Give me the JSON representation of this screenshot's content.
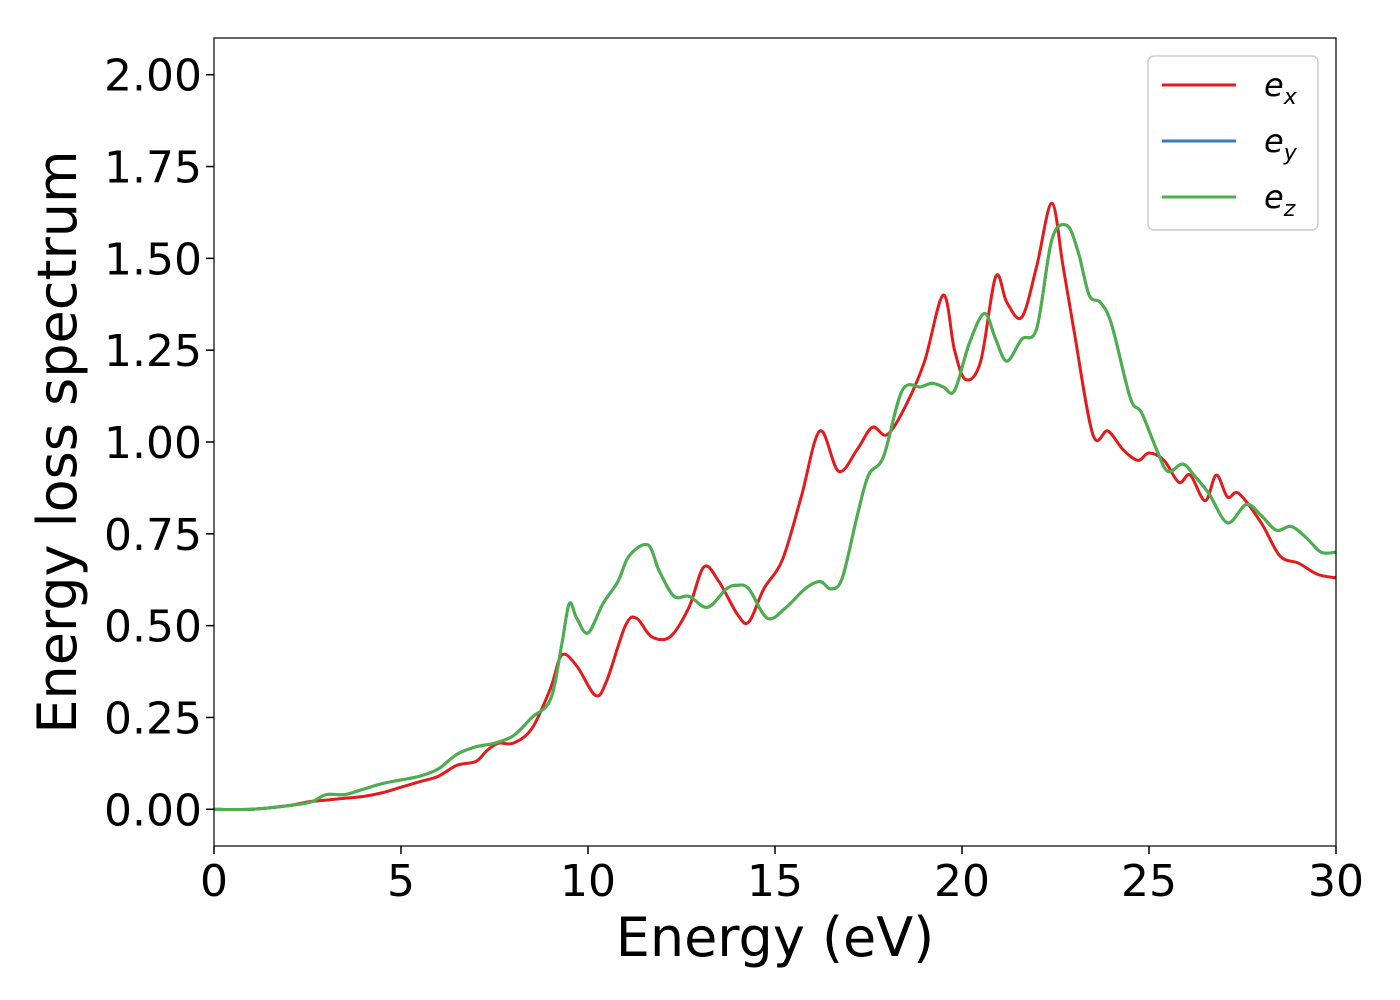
{
  "chart_data": {
    "type": "line",
    "title": "",
    "xlabel": "Energy (eV)",
    "ylabel": "Energy loss spectrum",
    "xlim": [
      0,
      30
    ],
    "ylim": [
      -0.1,
      2.1
    ],
    "xticks": [
      0,
      5,
      10,
      15,
      20,
      25,
      30
    ],
    "xtick_labels": [
      "0",
      "5",
      "10",
      "15",
      "20",
      "25",
      "30"
    ],
    "yticks": [
      0,
      0.25,
      0.5,
      0.75,
      1.0,
      1.25,
      1.5,
      1.75,
      2.0
    ],
    "ytick_labels": [
      "0.00",
      "0.25",
      "0.50",
      "0.75",
      "1.00",
      "1.25",
      "1.50",
      "1.75",
      "2.00"
    ],
    "grid": false,
    "legend_position": "top-right",
    "series": [
      {
        "name": "e",
        "subscript": "x",
        "color": "#e41a1c",
        "points": [
          [
            0,
            0
          ],
          [
            1,
            0
          ],
          [
            2,
            0.01
          ],
          [
            2.5,
            0.02
          ],
          [
            3,
            0.025
          ],
          [
            3.5,
            0.03
          ],
          [
            4,
            0.035
          ],
          [
            4.5,
            0.045
          ],
          [
            5,
            0.06
          ],
          [
            5.5,
            0.075
          ],
          [
            6,
            0.09
          ],
          [
            6.5,
            0.12
          ],
          [
            7,
            0.13
          ],
          [
            7.3,
            0.16
          ],
          [
            7.6,
            0.18
          ],
          [
            8,
            0.18
          ],
          [
            8.5,
            0.22
          ],
          [
            9,
            0.33
          ],
          [
            9.3,
            0.42
          ],
          [
            9.7,
            0.39
          ],
          [
            10.2,
            0.31
          ],
          [
            10.5,
            0.35
          ],
          [
            11,
            0.5
          ],
          [
            11.3,
            0.52
          ],
          [
            11.7,
            0.47
          ],
          [
            12.2,
            0.47
          ],
          [
            12.7,
            0.55
          ],
          [
            13.1,
            0.66
          ],
          [
            13.5,
            0.62
          ],
          [
            14,
            0.53
          ],
          [
            14.3,
            0.51
          ],
          [
            14.7,
            0.6
          ],
          [
            15.2,
            0.68
          ],
          [
            15.7,
            0.85
          ],
          [
            16.2,
            1.03
          ],
          [
            16.7,
            0.92
          ],
          [
            17.2,
            0.98
          ],
          [
            17.6,
            1.04
          ],
          [
            18,
            1.02
          ],
          [
            18.5,
            1.1
          ],
          [
            19,
            1.22
          ],
          [
            19.5,
            1.4
          ],
          [
            19.8,
            1.25
          ],
          [
            20.1,
            1.17
          ],
          [
            20.5,
            1.22
          ],
          [
            20.9,
            1.45
          ],
          [
            21.2,
            1.38
          ],
          [
            21.6,
            1.34
          ],
          [
            22,
            1.48
          ],
          [
            22.4,
            1.65
          ],
          [
            22.7,
            1.48
          ],
          [
            23,
            1.3
          ],
          [
            23.5,
            1.02
          ],
          [
            23.9,
            1.03
          ],
          [
            24.3,
            0.98
          ],
          [
            24.7,
            0.95
          ],
          [
            25,
            0.97
          ],
          [
            25.4,
            0.95
          ],
          [
            25.8,
            0.89
          ],
          [
            26.1,
            0.91
          ],
          [
            26.5,
            0.84
          ],
          [
            26.8,
            0.91
          ],
          [
            27.1,
            0.85
          ],
          [
            27.4,
            0.86
          ],
          [
            28,
            0.78
          ],
          [
            28.5,
            0.69
          ],
          [
            29,
            0.67
          ],
          [
            29.5,
            0.64
          ],
          [
            30,
            0.63
          ]
        ]
      },
      {
        "name": "e",
        "subscript": "y",
        "color": "#377eb8",
        "points": [
          [
            0,
            0
          ],
          [
            1,
            0
          ],
          [
            2,
            0.01
          ],
          [
            2.6,
            0.02
          ],
          [
            3,
            0.04
          ],
          [
            3.5,
            0.04
          ],
          [
            4,
            0.055
          ],
          [
            4.5,
            0.07
          ],
          [
            5,
            0.08
          ],
          [
            5.5,
            0.09
          ],
          [
            6,
            0.11
          ],
          [
            6.5,
            0.15
          ],
          [
            7,
            0.17
          ],
          [
            7.5,
            0.18
          ],
          [
            8,
            0.2
          ],
          [
            8.5,
            0.25
          ],
          [
            9,
            0.3
          ],
          [
            9.3,
            0.45
          ],
          [
            9.5,
            0.56
          ],
          [
            9.7,
            0.52
          ],
          [
            10,
            0.48
          ],
          [
            10.4,
            0.56
          ],
          [
            10.8,
            0.62
          ],
          [
            11.1,
            0.69
          ],
          [
            11.6,
            0.72
          ],
          [
            11.9,
            0.65
          ],
          [
            12.3,
            0.58
          ],
          [
            12.7,
            0.58
          ],
          [
            13.2,
            0.55
          ],
          [
            13.7,
            0.6
          ],
          [
            14,
            0.61
          ],
          [
            14.3,
            0.6
          ],
          [
            14.8,
            0.52
          ],
          [
            15.3,
            0.55
          ],
          [
            15.8,
            0.6
          ],
          [
            16.2,
            0.62
          ],
          [
            16.5,
            0.6
          ],
          [
            16.8,
            0.63
          ],
          [
            17.2,
            0.8
          ],
          [
            17.5,
            0.91
          ],
          [
            17.9,
            0.96
          ],
          [
            18.4,
            1.14
          ],
          [
            18.9,
            1.15
          ],
          [
            19.2,
            1.16
          ],
          [
            19.5,
            1.15
          ],
          [
            19.8,
            1.14
          ],
          [
            20.2,
            1.27
          ],
          [
            20.6,
            1.35
          ],
          [
            20.9,
            1.28
          ],
          [
            21.2,
            1.22
          ],
          [
            21.6,
            1.28
          ],
          [
            22,
            1.31
          ],
          [
            22.4,
            1.55
          ],
          [
            22.8,
            1.59
          ],
          [
            23.1,
            1.52
          ],
          [
            23.4,
            1.4
          ],
          [
            23.7,
            1.38
          ],
          [
            24,
            1.32
          ],
          [
            24.5,
            1.12
          ],
          [
            24.8,
            1.08
          ],
          [
            25.2,
            0.98
          ],
          [
            25.5,
            0.92
          ],
          [
            25.9,
            0.94
          ],
          [
            26.2,
            0.91
          ],
          [
            26.6,
            0.86
          ],
          [
            27.1,
            0.78
          ],
          [
            27.6,
            0.83
          ],
          [
            28,
            0.8
          ],
          [
            28.4,
            0.76
          ],
          [
            28.8,
            0.77
          ],
          [
            29.2,
            0.74
          ],
          [
            29.6,
            0.7
          ],
          [
            30,
            0.7
          ]
        ]
      },
      {
        "name": "e",
        "subscript": "z",
        "color": "#4daf4a",
        "points": [
          [
            0,
            0
          ],
          [
            1,
            0
          ],
          [
            2,
            0.01
          ],
          [
            2.6,
            0.02
          ],
          [
            3,
            0.04
          ],
          [
            3.5,
            0.04
          ],
          [
            4,
            0.055
          ],
          [
            4.5,
            0.07
          ],
          [
            5,
            0.08
          ],
          [
            5.5,
            0.09
          ],
          [
            6,
            0.11
          ],
          [
            6.5,
            0.15
          ],
          [
            7,
            0.17
          ],
          [
            7.5,
            0.18
          ],
          [
            8,
            0.2
          ],
          [
            8.5,
            0.25
          ],
          [
            9,
            0.3
          ],
          [
            9.3,
            0.45
          ],
          [
            9.5,
            0.56
          ],
          [
            9.7,
            0.52
          ],
          [
            10,
            0.48
          ],
          [
            10.4,
            0.56
          ],
          [
            10.8,
            0.62
          ],
          [
            11.1,
            0.69
          ],
          [
            11.6,
            0.72
          ],
          [
            11.9,
            0.65
          ],
          [
            12.3,
            0.58
          ],
          [
            12.7,
            0.58
          ],
          [
            13.2,
            0.55
          ],
          [
            13.7,
            0.6
          ],
          [
            14,
            0.61
          ],
          [
            14.3,
            0.6
          ],
          [
            14.8,
            0.52
          ],
          [
            15.3,
            0.55
          ],
          [
            15.8,
            0.6
          ],
          [
            16.2,
            0.62
          ],
          [
            16.5,
            0.6
          ],
          [
            16.8,
            0.63
          ],
          [
            17.2,
            0.8
          ],
          [
            17.5,
            0.91
          ],
          [
            17.9,
            0.96
          ],
          [
            18.4,
            1.14
          ],
          [
            18.9,
            1.15
          ],
          [
            19.2,
            1.16
          ],
          [
            19.5,
            1.15
          ],
          [
            19.8,
            1.14
          ],
          [
            20.2,
            1.27
          ],
          [
            20.6,
            1.35
          ],
          [
            20.9,
            1.28
          ],
          [
            21.2,
            1.22
          ],
          [
            21.6,
            1.28
          ],
          [
            22,
            1.31
          ],
          [
            22.4,
            1.55
          ],
          [
            22.8,
            1.59
          ],
          [
            23.1,
            1.52
          ],
          [
            23.4,
            1.4
          ],
          [
            23.7,
            1.38
          ],
          [
            24,
            1.32
          ],
          [
            24.5,
            1.12
          ],
          [
            24.8,
            1.08
          ],
          [
            25.2,
            0.98
          ],
          [
            25.5,
            0.92
          ],
          [
            25.9,
            0.94
          ],
          [
            26.2,
            0.91
          ],
          [
            26.6,
            0.86
          ],
          [
            27.1,
            0.78
          ],
          [
            27.6,
            0.83
          ],
          [
            28,
            0.8
          ],
          [
            28.4,
            0.76
          ],
          [
            28.8,
            0.77
          ],
          [
            29.2,
            0.74
          ],
          [
            29.6,
            0.7
          ],
          [
            30,
            0.7
          ]
        ]
      }
    ]
  }
}
